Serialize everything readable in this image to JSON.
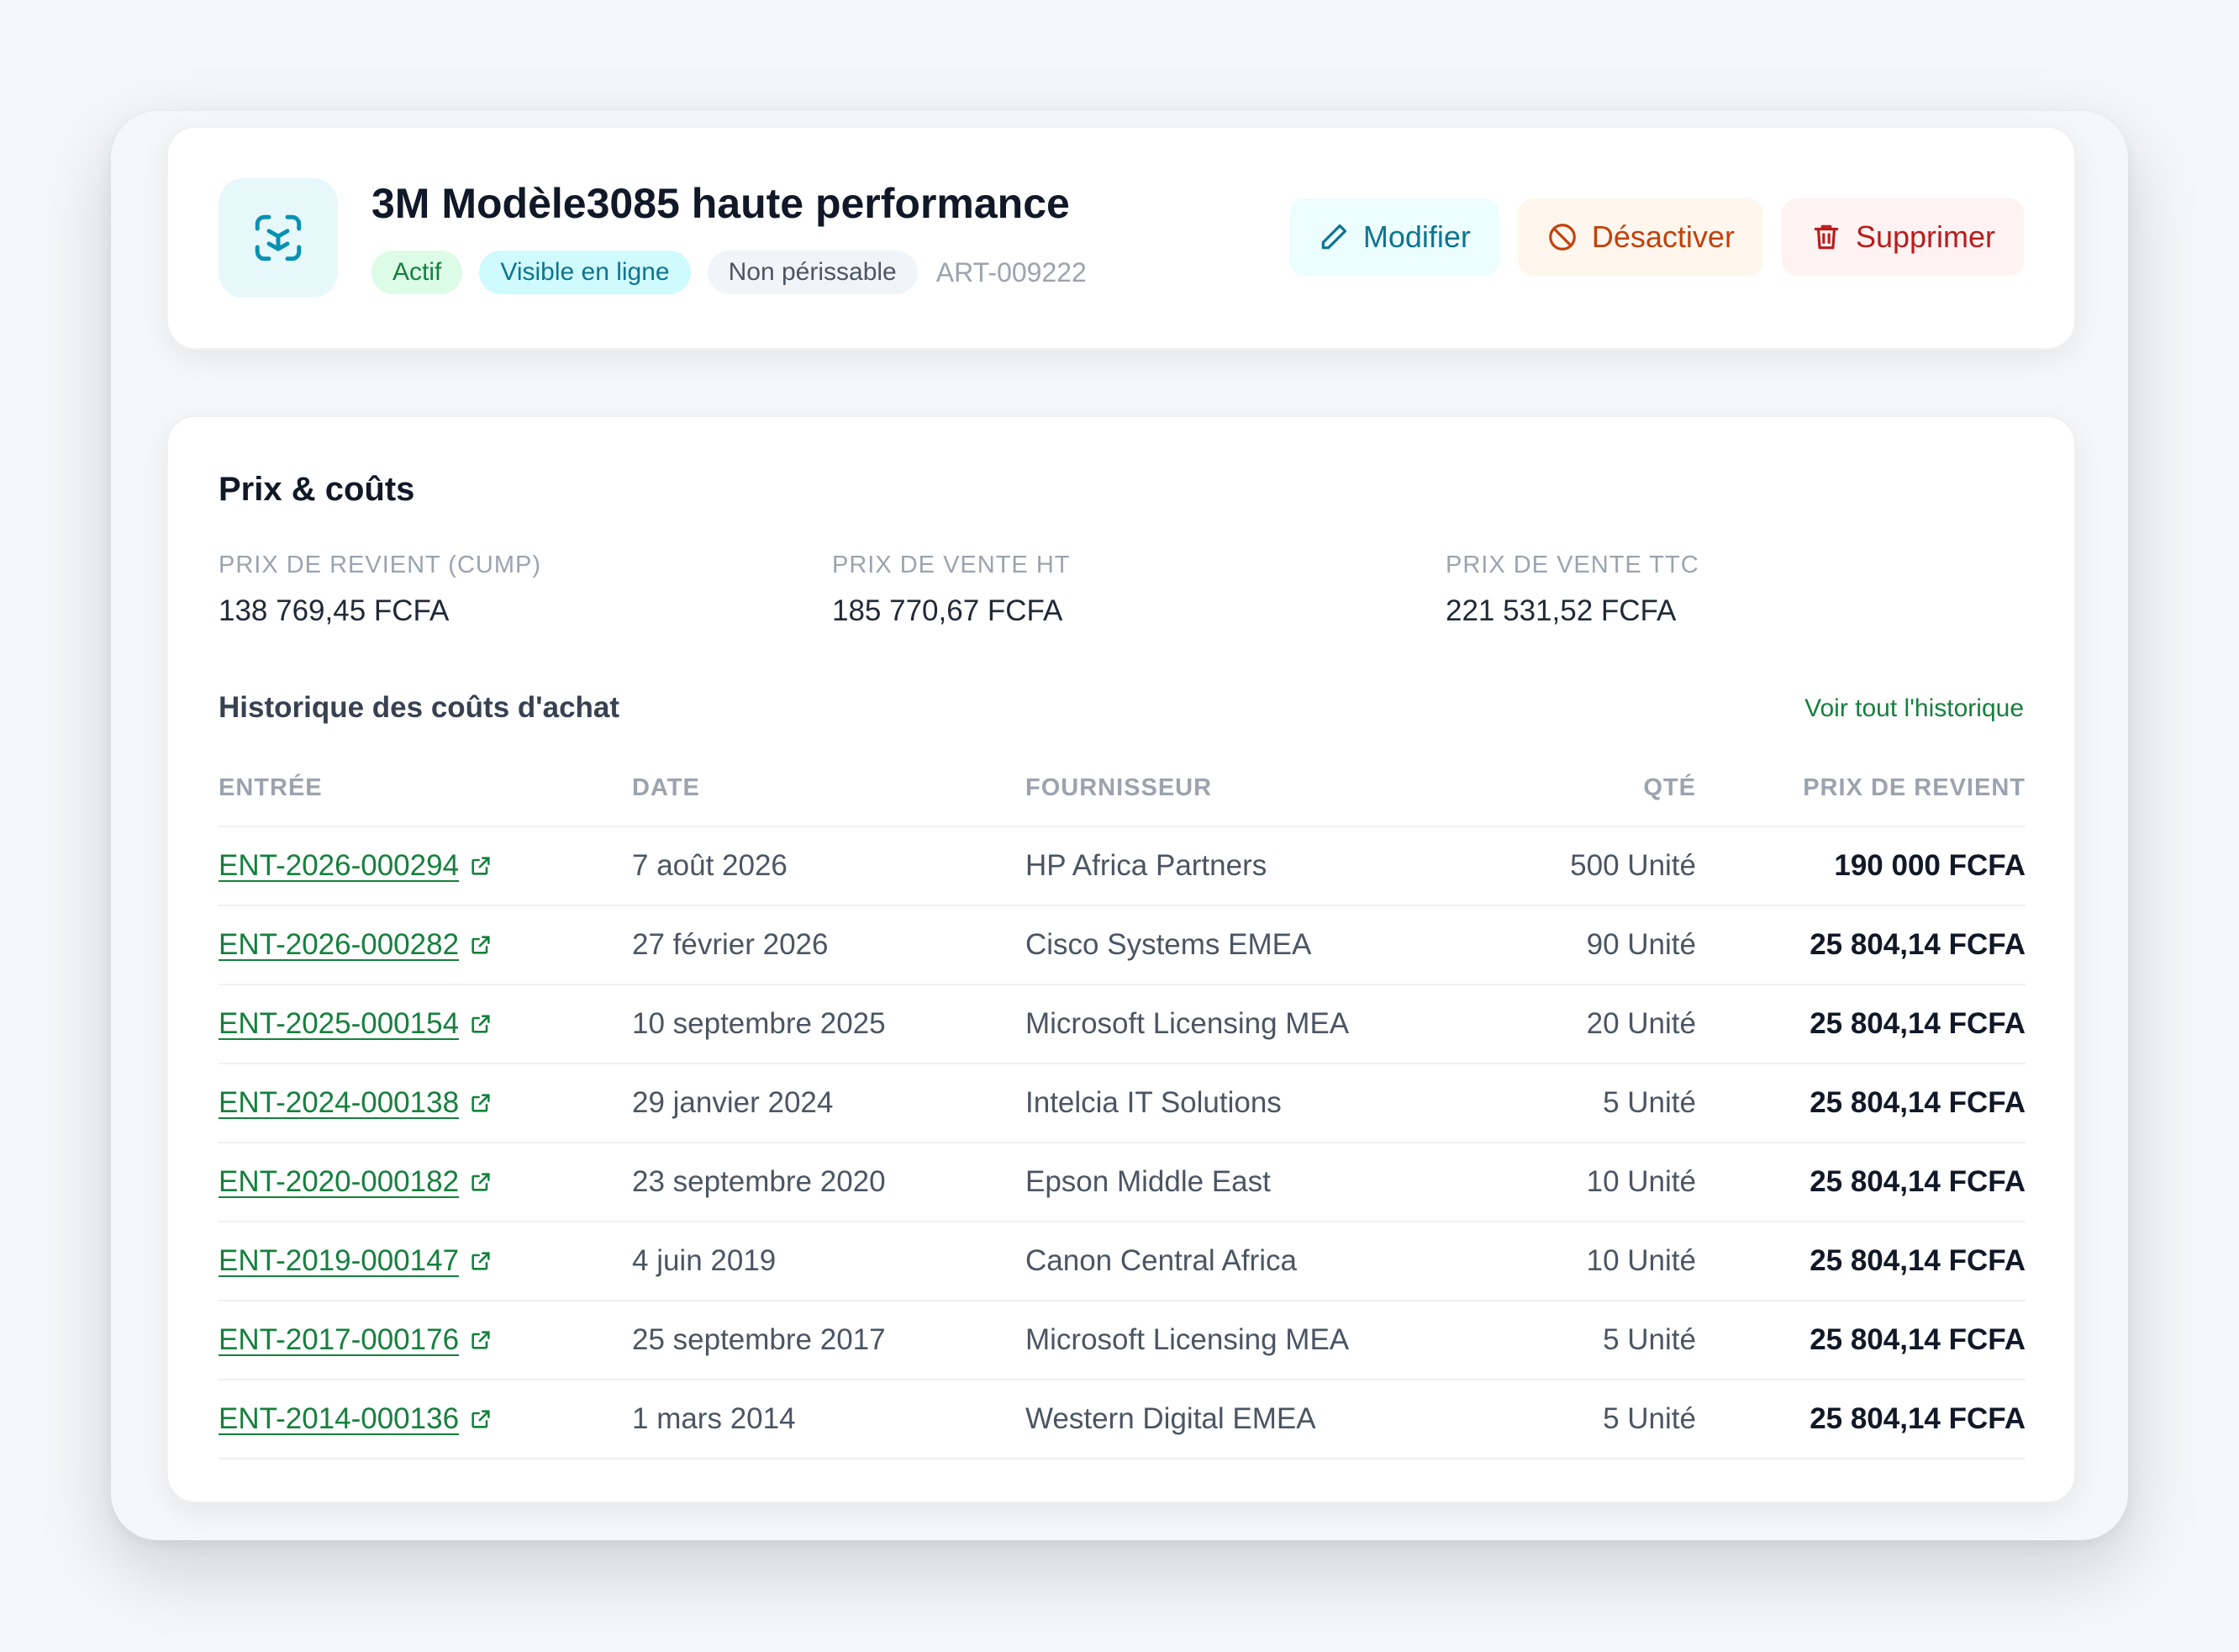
{
  "product": {
    "title": "3M Modèle3085 haute performance",
    "icon": "cube-scan-icon",
    "badges": {
      "status": "Actif",
      "online": "Visible en ligne",
      "perishable": "Non périssable"
    },
    "sku": "ART-009222"
  },
  "actions": {
    "edit": "Modifier",
    "deactivate": "Désactiver",
    "delete": "Supprimer"
  },
  "pricing": {
    "title": "Prix & coûts",
    "cost_label": "PRIX DE REVIENT (CUMP)",
    "cost_value": "138 769,45 FCFA",
    "sale_ht_label": "PRIX DE VENTE HT",
    "sale_ht_value": "185 770,67 FCFA",
    "sale_ttc_label": "PRIX DE VENTE TTC",
    "sale_ttc_value": "221 531,52 FCFA"
  },
  "history": {
    "title": "Historique des coûts d'achat",
    "view_all": "Voir tout l'historique",
    "columns": {
      "entry": "ENTRÉE",
      "date": "DATE",
      "supplier": "FOURNISSEUR",
      "qty": "QTÉ",
      "price": "PRIX DE REVIENT"
    },
    "rows": [
      {
        "entry": "ENT-2026-000294",
        "date": "7 août 2026",
        "supplier": "HP Africa Partners",
        "qty": "500 Unité",
        "price": "190 000 FCFA"
      },
      {
        "entry": "ENT-2026-000282",
        "date": "27 février 2026",
        "supplier": "Cisco Systems EMEA",
        "qty": "90 Unité",
        "price": "25 804,14 FCFA"
      },
      {
        "entry": "ENT-2025-000154",
        "date": "10 septembre 2025",
        "supplier": "Microsoft Licensing MEA",
        "qty": "20 Unité",
        "price": "25 804,14 FCFA"
      },
      {
        "entry": "ENT-2024-000138",
        "date": "29 janvier 2024",
        "supplier": "Intelcia IT Solutions",
        "qty": "5 Unité",
        "price": "25 804,14 FCFA"
      },
      {
        "entry": "ENT-2020-000182",
        "date": "23 septembre 2020",
        "supplier": "Epson Middle East",
        "qty": "10 Unité",
        "price": "25 804,14 FCFA"
      },
      {
        "entry": "ENT-2019-000147",
        "date": "4 juin 2019",
        "supplier": "Canon Central Africa",
        "qty": "10 Unité",
        "price": "25 804,14 FCFA"
      },
      {
        "entry": "ENT-2017-000176",
        "date": "25 septembre 2017",
        "supplier": "Microsoft Licensing MEA",
        "qty": "5 Unité",
        "price": "25 804,14 FCFA"
      },
      {
        "entry": "ENT-2014-000136",
        "date": "1 mars 2014",
        "supplier": "Western Digital EMEA",
        "qty": "5 Unité",
        "price": "25 804,14 FCFA"
      }
    ]
  },
  "colors": {
    "accent_green": "#15803d",
    "accent_teal": "#0e7490",
    "warning_orange": "#c2410c",
    "danger_red": "#b91c1c"
  }
}
